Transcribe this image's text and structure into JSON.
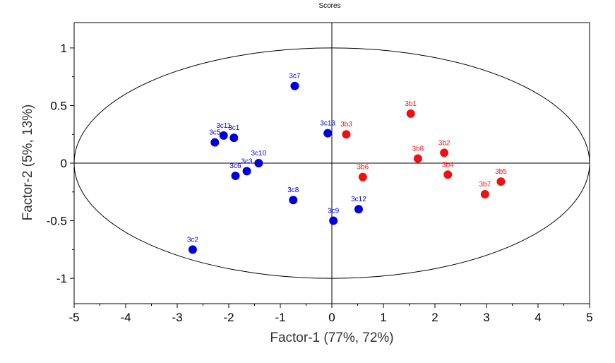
{
  "chart_data": {
    "type": "scatter",
    "title": "Scores",
    "xlabel": "Factor-1 (77%, 72%)",
    "ylabel": "Factor-2 (5%, 13%)",
    "xlim": [
      -5,
      5
    ],
    "ylim": [
      -1.22,
      1.22
    ],
    "xticks": [
      -5,
      -4,
      -3,
      -2,
      -1,
      0,
      1,
      2,
      3,
      4,
      5
    ],
    "yticks": [
      -1,
      -0.5,
      0,
      0.5,
      1
    ],
    "ellipse": {
      "cx": 0,
      "cy": 0,
      "rx": 5.0,
      "ry": 1.0
    },
    "series": [
      {
        "name": "3c",
        "color": "#0000dd",
        "points": [
          {
            "label": "3c2",
            "x": -2.7,
            "y": -0.75
          },
          {
            "label": "3c3",
            "x": -1.65,
            "y": -0.07
          },
          {
            "label": "3c5",
            "x": -2.27,
            "y": 0.18
          },
          {
            "label": "3c6",
            "x": -1.87,
            "y": -0.11
          },
          {
            "label": "3c7",
            "x": -0.72,
            "y": 0.67
          },
          {
            "label": "3c8",
            "x": -0.75,
            "y": -0.32
          },
          {
            "label": "3c9",
            "x": 0.03,
            "y": -0.5
          },
          {
            "label": "3c10",
            "x": -1.42,
            "y": 0.0
          },
          {
            "label": "3c11",
            "x": -2.1,
            "y": 0.24
          },
          {
            "label": "3c12",
            "x": 0.52,
            "y": -0.4
          },
          {
            "label": "3c13",
            "x": -0.08,
            "y": 0.26
          },
          {
            "label": "3c1",
            "x": -1.9,
            "y": 0.22
          }
        ]
      },
      {
        "name": "3b",
        "color": "#ee1111",
        "points": [
          {
            "label": "3b1",
            "x": 1.53,
            "y": 0.43
          },
          {
            "label": "3b2",
            "x": 2.18,
            "y": 0.09
          },
          {
            "label": "3b3",
            "x": 0.28,
            "y": 0.25
          },
          {
            "label": "3b4",
            "x": 2.25,
            "y": -0.1
          },
          {
            "label": "3b5",
            "x": 3.28,
            "y": -0.16
          },
          {
            "label": "3b6",
            "x": 0.6,
            "y": -0.12
          },
          {
            "label": "3b7",
            "x": 2.97,
            "y": -0.27
          },
          {
            "label": "3b8",
            "x": 1.67,
            "y": 0.04
          }
        ]
      }
    ]
  }
}
